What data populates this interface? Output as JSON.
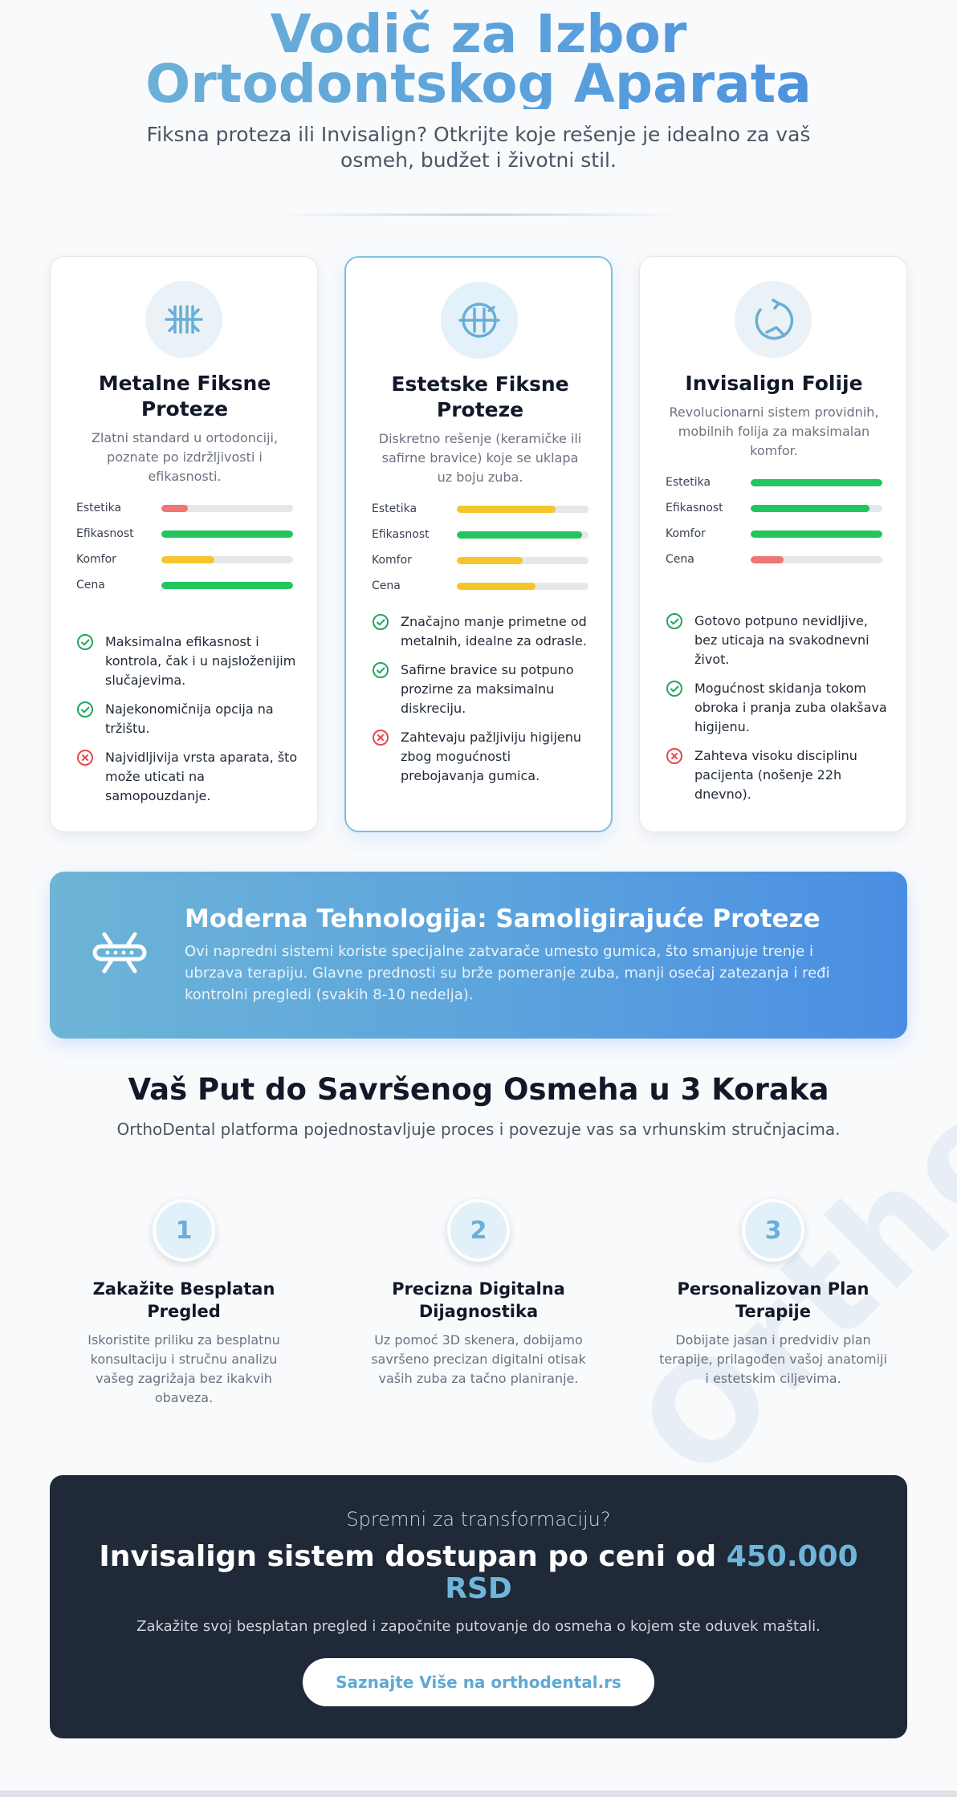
{
  "hero": {
    "title": "Vodič za Izbor Ortodontskog Aparata",
    "subtitle": "Fiksna proteza ili Invisalign? Otkrijte koje rešenje je idealno za vaš osmeh, budžet i životni stil."
  },
  "colors": {
    "accent": "#5fa8d3",
    "bar_red": "#f07575",
    "bar_yellow": "#f5c62a",
    "bar_green": "#22c55e",
    "check": "#22a55e",
    "cross": "#e5484d",
    "dark_panel": "#1f2937"
  },
  "cards": [
    {
      "icon": "metal-braces-icon",
      "title": "Metalne Fiksne Proteze",
      "description": "Zlatni standard u ortodonciji, poznate po izdržljivosti i efikasnosti.",
      "ratings": [
        {
          "label": "Estetika",
          "value": 0.2,
          "color": "red"
        },
        {
          "label": "Efikasnost",
          "value": 1.0,
          "color": "green"
        },
        {
          "label": "Komfor",
          "value": 0.4,
          "color": "yellow"
        },
        {
          "label": "Cena",
          "value": 1.0,
          "color": "green"
        }
      ],
      "points": [
        {
          "type": "pro",
          "text": "Maksimalna efikasnost i kontrola, čak i u najsloženijim slučajevima."
        },
        {
          "type": "pro",
          "text": "Najekonomičnija opcija na tržištu."
        },
        {
          "type": "con",
          "text": "Najvidljivija vrsta aparata, što može uticati na samopouzdanje."
        }
      ]
    },
    {
      "icon": "ceramic-braces-icon",
      "title": "Estetske Fiksne Proteze",
      "description": "Diskretno rešenje (keramičke ili safirne bravice) koje se uklapa uz boju zuba.",
      "ratings": [
        {
          "label": "Estetika",
          "value": 0.75,
          "color": "yellow"
        },
        {
          "label": "Efikasnost",
          "value": 0.95,
          "color": "green"
        },
        {
          "label": "Komfor",
          "value": 0.5,
          "color": "yellow"
        },
        {
          "label": "Cena",
          "value": 0.6,
          "color": "yellow"
        }
      ],
      "points": [
        {
          "type": "pro",
          "text": "Značajno manje primetne od metalnih, idealne za odrasle."
        },
        {
          "type": "pro",
          "text": "Safirne bravice su potpuno prozirne za maksimalnu diskreciju."
        },
        {
          "type": "con",
          "text": "Zahtevaju pažljiviju higijenu zbog mogućnosti prebojavanja gumica."
        }
      ]
    },
    {
      "icon": "invisalign-aligner-icon",
      "title": "Invisalign Folije",
      "description": "Revolucionarni sistem providnih, mobilnih folija za maksimalan komfor.",
      "ratings": [
        {
          "label": "Estetika",
          "value": 1.0,
          "color": "green"
        },
        {
          "label": "Efikasnost",
          "value": 0.9,
          "color": "green"
        },
        {
          "label": "Komfor",
          "value": 1.0,
          "color": "green"
        },
        {
          "label": "Cena",
          "value": 0.25,
          "color": "red"
        }
      ],
      "points": [
        {
          "type": "pro",
          "text": "Gotovo potpuno nevidljive, bez uticaja na svakodnevni život."
        },
        {
          "type": "pro",
          "text": "Mogućnost skidanja tokom obroka i pranja zuba olakšava higijenu."
        },
        {
          "type": "con",
          "text": "Zahteva visoku disciplinu pacijenta (nošenje 22h dnevno)."
        }
      ]
    }
  ],
  "tech": {
    "icon": "self-ligating-bracket-icon",
    "title": "Moderna Tehnologija: Samoligirajuće Proteze",
    "text": "Ovi napredni sistemi koriste specijalne zatvarače umesto gumica, što smanjuje trenje i ubrzava terapiju. Glavne prednosti su brže pomeranje zuba, manji osećaj zatezanja i ređi kontrolni pregledi (svakih 8-10 nedelja)."
  },
  "steps": {
    "title": "Vaš Put do Savršenog Osmeha u 3 Koraka",
    "subtitle": "OrthoDental platforma pojednostavljuje proces i povezuje vas sa vrhunskim stručnjacima.",
    "items": [
      {
        "number": "1",
        "title": "Zakažite Besplatan Pregled",
        "text": "Iskoristite priliku za besplatnu konsultaciju i stručnu analizu vašeg zagrižaja bez ikakvih obaveza."
      },
      {
        "number": "2",
        "title": "Precizna Digitalna Dijagnostika",
        "text": "Uz pomoć 3D skenera, dobijamo savršeno precizan digitalni otisak vaših zuba za tačno planiranje."
      },
      {
        "number": "3",
        "title": "Personalizovan Plan Terapije",
        "text": "Dobijate jasan i predvidiv plan terapije, prilagođen vašoj anatomiji i estetskim ciljevima."
      }
    ]
  },
  "cta": {
    "kicker": "Spremni za transformaciju?",
    "title_prefix": "Invisalign sistem dostupan po ceni od ",
    "price": "450.000 RSD",
    "text": "Zakažite svoj besplatan pregled i započnite putovanje do osmeha o kojem ste oduvek maštali.",
    "button_label": "Saznajte Više na orthodental.rs"
  },
  "watermark": "OrthoDental"
}
